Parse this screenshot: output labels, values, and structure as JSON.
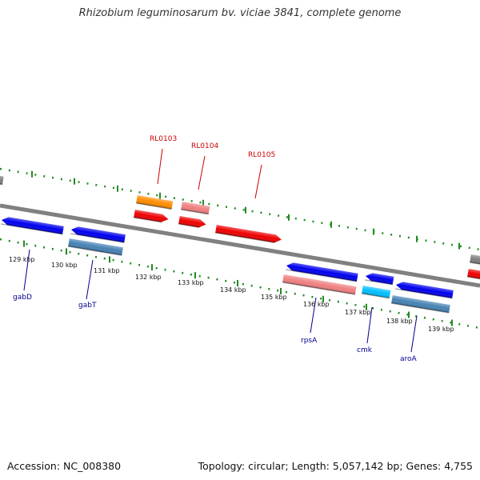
{
  "title": "Rhizobium leguminosarum bv. viciae 3841, complete genome",
  "footer": {
    "accession": "Accession: NC_008380",
    "stats": "Topology: circular; Length: 5,057,142 bp; Genes: 4,755"
  },
  "colors": {
    "backbone": "#808080",
    "tick": "#228b22",
    "forward_label": "#cc0000",
    "reverse_label": "#00008b",
    "blue": "#0000ee",
    "steel_blue": "#4682b4",
    "red": "#ee0000",
    "pink": "#f08080",
    "orange": "#ff8c00",
    "cyan": "#00bfff",
    "gray": "#808080"
  },
  "scale": {
    "ticks": [
      "129 kbp",
      "130 kbp",
      "131 kbp",
      "132 kbp",
      "133 kbp",
      "134 kbp",
      "135 kbp",
      "136 kbp",
      "137 kbp",
      "138 kbp",
      "139 kbp"
    ]
  },
  "labels": {
    "forward": [
      "RL0103",
      "RL0104",
      "RL0105"
    ],
    "reverse": [
      "gabD",
      "gabT",
      "rpsA",
      "cmk",
      "aroA"
    ]
  }
}
